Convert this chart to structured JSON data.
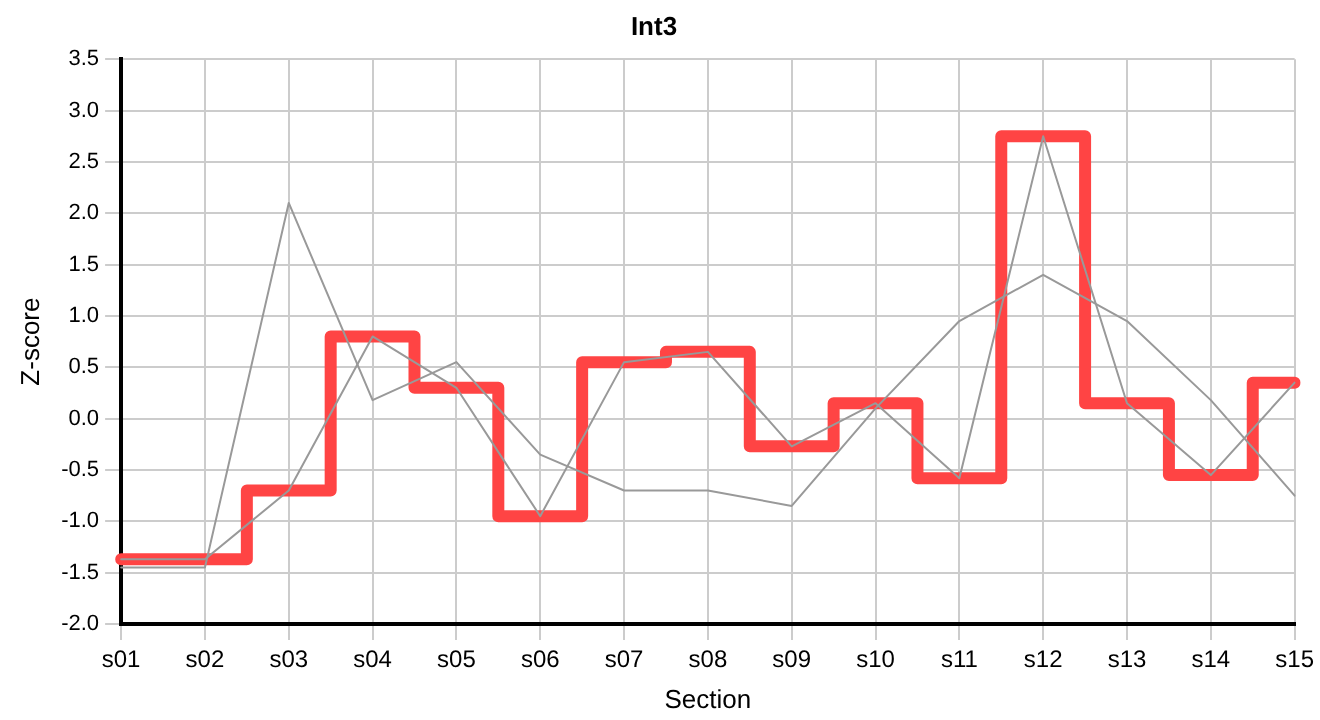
{
  "chart_data": {
    "type": "line",
    "title": "Int3",
    "xlabel": "Section",
    "ylabel": "Z-score",
    "categories": [
      "s01",
      "s02",
      "s03",
      "s04",
      "s05",
      "s06",
      "s07",
      "s08",
      "s09",
      "s10",
      "s11",
      "s12",
      "s13",
      "s14",
      "s15"
    ],
    "series": [
      {
        "type": "line",
        "color": "#999999",
        "values": [
          -1.45,
          -1.45,
          2.1,
          0.18,
          0.55,
          -0.35,
          -0.7,
          -0.7,
          -0.85,
          0.1,
          0.95,
          1.4,
          0.95,
          0.18,
          -0.75
        ]
      },
      {
        "type": "line",
        "color": "#999999",
        "values": [
          -1.37,
          -1.37,
          -0.7,
          0.8,
          0.3,
          -0.95,
          0.55,
          0.65,
          -0.27,
          0.15,
          -0.58,
          2.75,
          0.15,
          -0.55,
          0.35
        ]
      },
      {
        "type": "step",
        "color": "#ff4444",
        "values": [
          -1.37,
          -1.37,
          -0.7,
          0.8,
          0.3,
          -0.95,
          0.55,
          0.65,
          -0.27,
          0.15,
          -0.58,
          2.75,
          0.15,
          -0.55,
          0.35
        ]
      }
    ],
    "ylim": [
      -2,
      3.5
    ],
    "yticks": [
      {
        "value": -2,
        "label": "-2.0"
      },
      -1.5,
      {
        "value": -1,
        "label": "-1.0"
      },
      -0.5,
      {
        "value": 0,
        "label": "0.0"
      },
      0.5,
      {
        "value": 1,
        "label": "1.0"
      },
      1.5,
      {
        "value": 2,
        "label": "2.0"
      },
      2.5,
      {
        "value": 3,
        "label": "3.0"
      },
      3.5
    ],
    "grid": true,
    "legend": false,
    "marker": "none",
    "line_style": "solid"
  }
}
